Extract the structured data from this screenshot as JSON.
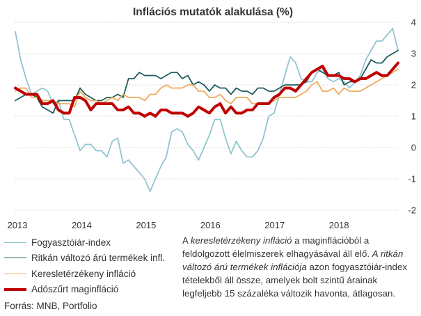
{
  "chart_data": {
    "type": "line",
    "title": "Inflációs mutatók alakulása (%)",
    "xlabel": "",
    "ylabel": "",
    "x_ticks": [
      "2013",
      "2014",
      "2015",
      "2016",
      "2017",
      "2018"
    ],
    "x_range": [
      2013.0,
      2018.95
    ],
    "ylim": [
      -2,
      4
    ],
    "y_ticks": [
      "4",
      "3",
      "2",
      "1",
      "0",
      "-1",
      "-2"
    ],
    "grid": true,
    "legend_position": "bottom-left",
    "series": [
      {
        "name": "Fogyasztóiár-index",
        "color": "#92c5cf",
        "width": 1.8,
        "values": [
          3.7,
          2.8,
          2.2,
          1.7,
          1.8,
          1.9,
          1.8,
          1.4,
          1.5,
          0.9,
          0.9,
          0.4,
          -0.1,
          0.1,
          0.1,
          -0.1,
          -0.1,
          -0.3,
          0.2,
          0.3,
          -0.5,
          -0.4,
          -0.6,
          -0.8,
          -1.0,
          -1.4,
          -1.0,
          -0.6,
          -0.3,
          0.5,
          0.6,
          0.5,
          0.1,
          -0.1,
          -0.4,
          0.0,
          0.4,
          0.9,
          0.9,
          0.3,
          -0.2,
          0.2,
          -0.1,
          -0.3,
          -0.3,
          -0.1,
          0.3,
          1.0,
          1.1,
          1.7,
          2.3,
          2.9,
          2.7,
          2.2,
          2.1,
          2.1,
          2.4,
          2.5,
          2.2,
          2.1,
          2.2,
          2.1,
          1.9,
          2.1,
          2.3,
          2.8,
          3.1,
          3.4,
          3.4,
          3.6,
          3.8,
          3.1
        ]
      },
      {
        "name": "Ritkán változó árú termékek infl.",
        "color": "#1f5c5c",
        "width": 1.8,
        "values": [
          1.5,
          1.6,
          1.7,
          1.7,
          1.6,
          1.3,
          1.2,
          1.1,
          1.5,
          1.5,
          1.5,
          1.5,
          1.9,
          1.7,
          1.6,
          1.5,
          1.5,
          1.6,
          1.6,
          1.7,
          1.6,
          2.2,
          2.2,
          2.4,
          2.3,
          2.3,
          2.3,
          2.2,
          2.3,
          2.4,
          2.4,
          2.2,
          2.3,
          2.0,
          2.1,
          2.0,
          1.8,
          2.0,
          1.9,
          1.9,
          1.7,
          1.9,
          1.8,
          1.8,
          1.7,
          1.9,
          1.9,
          1.8,
          1.8,
          1.9,
          2.0,
          2.0,
          2.0,
          2.0,
          2.1,
          2.4,
          2.5,
          2.4,
          2.3,
          2.3,
          2.4,
          2.0,
          2.1,
          2.1,
          2.2,
          2.5,
          2.8,
          2.7,
          2.7,
          2.9,
          3.0,
          3.1
        ]
      },
      {
        "name": "Keresletérzékeny infláció",
        "color": "#f0a95a",
        "width": 1.8,
        "values": [
          1.8,
          1.9,
          1.9,
          1.6,
          1.6,
          1.5,
          1.5,
          1.5,
          1.4,
          1.4,
          1.4,
          1.3,
          1.8,
          1.6,
          1.5,
          1.5,
          1.4,
          1.5,
          1.6,
          1.5,
          1.7,
          1.6,
          1.6,
          1.6,
          1.5,
          1.7,
          1.7,
          1.9,
          2.0,
          1.9,
          1.9,
          1.9,
          2.0,
          2.0,
          1.8,
          1.8,
          1.6,
          1.6,
          1.7,
          1.5,
          1.4,
          1.6,
          1.6,
          1.6,
          1.4,
          1.4,
          1.4,
          1.4,
          1.5,
          1.6,
          1.6,
          1.6,
          1.6,
          1.7,
          1.8,
          2.0,
          2.1,
          1.8,
          1.8,
          1.9,
          1.7,
          1.9,
          1.8,
          1.8,
          1.8,
          1.9,
          2.0,
          2.1,
          2.2,
          2.3,
          2.4,
          2.5
        ]
      },
      {
        "name": "Adószűrt maginfláció",
        "color": "#c00000",
        "width": 4,
        "values": [
          1.9,
          1.8,
          1.7,
          1.7,
          1.7,
          1.4,
          1.4,
          1.5,
          1.2,
          1.1,
          1.1,
          1.6,
          1.6,
          1.5,
          1.2,
          1.4,
          1.4,
          1.4,
          1.4,
          1.2,
          1.2,
          1.3,
          1.1,
          1.1,
          1.0,
          1.1,
          1.0,
          1.2,
          1.2,
          1.1,
          1.1,
          1.1,
          1.0,
          1.1,
          1.3,
          1.2,
          1.1,
          1.3,
          1.4,
          1.1,
          1.3,
          1.1,
          1.1,
          1.2,
          1.2,
          1.4,
          1.4,
          1.4,
          1.6,
          1.7,
          1.9,
          1.9,
          1.8,
          2.0,
          2.2,
          2.4,
          2.5,
          2.6,
          2.3,
          2.3,
          2.3,
          2.2,
          2.2,
          2.1,
          2.2,
          2.2,
          2.3,
          2.4,
          2.3,
          2.3,
          2.5,
          2.7
        ]
      }
    ]
  },
  "source": "Forrás: MNB, Portfolio",
  "note": {
    "p1": "A ",
    "t1": "keresletérzékeny infláció",
    "p2": " a maginflációból a feldolgozott élelmiszerek elhagyásával áll elő. ",
    "t2": "A ritkán változó árú termékek inflációja",
    "p3": " azon fogyasztóiár-index tételekből áll össze, amelyek bolt szintű árainak legfeljebb 15 százaléka változik havonta, átlagosan."
  }
}
